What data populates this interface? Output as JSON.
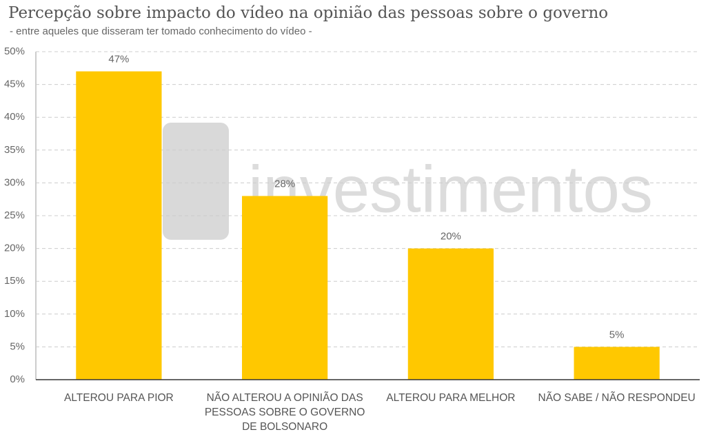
{
  "chart_data": {
    "type": "bar",
    "title": "Percepção sobre impacto do vídeo na opinião das pessoas sobre o governo",
    "subtitle": "- entre aqueles que disseram ter tomado conhecimento do vídeo -",
    "watermark": "investimentos",
    "categories": [
      "ALTEROU PARA PIOR",
      "NÃO ALTEROU A OPINIÃO DAS PESSOAS SOBRE O GOVERNO DE BOLSONARO",
      "ALTEROU PARA MELHOR",
      "NÃO SABE / NÃO RESPONDEU"
    ],
    "values": [
      47,
      28,
      20,
      5
    ],
    "value_labels": [
      "47%",
      "28%",
      "20%",
      "5%"
    ],
    "color": "#ffc800",
    "ylim": [
      0,
      50
    ],
    "yticks": [
      {
        "value": 0,
        "label": "0%"
      },
      {
        "value": 5,
        "label": "5%"
      },
      {
        "value": 10,
        "label": "10%"
      },
      {
        "value": 15,
        "label": "15%"
      },
      {
        "value": 20,
        "label": "20%"
      },
      {
        "value": 25,
        "label": "25%"
      },
      {
        "value": 30,
        "label": "30%"
      },
      {
        "value": 35,
        "label": "35%"
      },
      {
        "value": 40,
        "label": "40%"
      },
      {
        "value": 45,
        "label": "45%"
      },
      {
        "value": 50,
        "label": "50%"
      }
    ],
    "grid": true
  }
}
